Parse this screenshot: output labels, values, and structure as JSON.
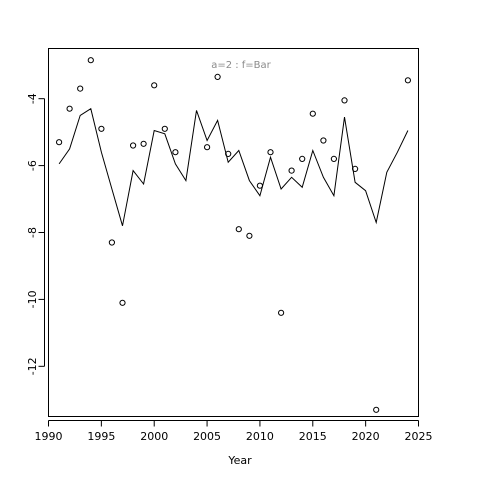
{
  "chart_data": {
    "type": "line",
    "title": "a=2  :  f=Bar",
    "xlabel": "Year",
    "ylabel": "",
    "xlim": [
      1990,
      2025
    ],
    "ylim": [
      -13.5,
      -2.5
    ],
    "xticks": [
      1990,
      1995,
      2000,
      2005,
      2010,
      2015,
      2020,
      2025
    ],
    "yticks": [
      -12,
      -10,
      -8,
      -6,
      -4
    ],
    "grid": false,
    "series": [
      {
        "kind": "line",
        "x": [
          1991,
          1992,
          1993,
          1994,
          1995,
          1996,
          1997,
          1998,
          1999,
          2000,
          2001,
          2002,
          2003,
          2004,
          2005,
          2006,
          2007,
          2008,
          2009,
          2010,
          2011,
          2012,
          2013,
          2014,
          2015,
          2016,
          2017,
          2018,
          2019,
          2020,
          2021,
          2022,
          2023,
          2024
        ],
        "y": [
          -5.95,
          -5.5,
          -4.5,
          -4.3,
          -5.6,
          -6.7,
          -7.8,
          -6.15,
          -6.55,
          -4.95,
          -5.05,
          -5.95,
          -6.45,
          -4.35,
          -5.25,
          -4.65,
          -5.9,
          -5.55,
          -6.45,
          -6.9,
          -5.75,
          -6.7,
          -6.35,
          -6.65,
          -5.55,
          -6.35,
          -6.9,
          -4.55,
          -6.5,
          -6.75,
          -7.7,
          -6.2,
          -5.6,
          -4.95
        ]
      },
      {
        "kind": "points",
        "x": [
          1991,
          1992,
          1993,
          1994,
          1995,
          1996,
          1997,
          1998,
          1999,
          2000,
          2001,
          2002,
          2005,
          2006,
          2007,
          2008,
          2009,
          2010,
          2011,
          2012,
          2013,
          2014,
          2015,
          2016,
          2017,
          2018,
          2019,
          2021,
          2024
        ],
        "y": [
          -5.3,
          -4.3,
          -3.7,
          -2.85,
          -4.9,
          -8.3,
          -10.1,
          -5.4,
          -5.35,
          -3.6,
          -4.9,
          -5.6,
          -5.45,
          -3.35,
          -5.65,
          -7.9,
          -8.1,
          -6.6,
          -5.6,
          -10.4,
          -6.15,
          -5.8,
          -4.45,
          -5.25,
          -5.8,
          -4.05,
          -6.1,
          -13.3,
          -3.45
        ]
      }
    ]
  }
}
